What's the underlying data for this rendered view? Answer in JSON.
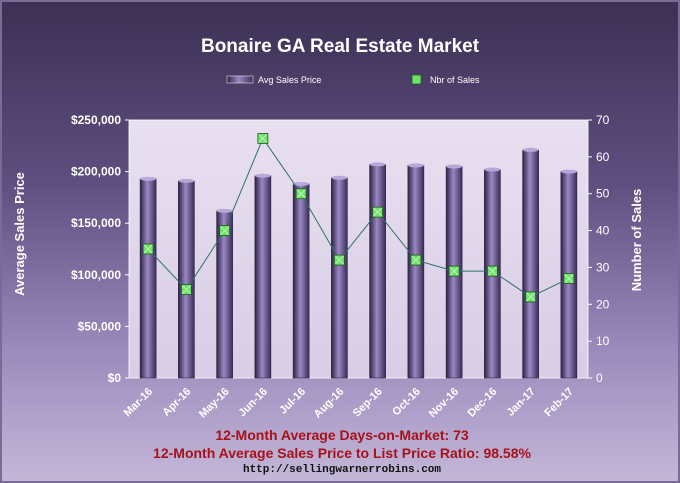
{
  "colors": {
    "bar": "#4f3d74",
    "bar_highlight": "#9b88c4",
    "plot_bg": "#e6dcef",
    "line": "#2f6f6a",
    "marker": "#6fe06a",
    "stat_text": "#a8101a"
  },
  "chart_data": {
    "type": "bar",
    "title": "Bonaire GA Real Estate Market",
    "categories": [
      "Mar-16",
      "Apr-16",
      "May-16",
      "Jun-16",
      "Jul-16",
      "Aug-16",
      "Sep-16",
      "Oct-16",
      "Nov-16",
      "Dec-16",
      "Jan-17",
      "Feb-17"
    ],
    "series": [
      {
        "name": "Avg Sales Price",
        "type": "bar",
        "axis": "left",
        "values": [
          193000,
          191000,
          162000,
          196000,
          188000,
          194000,
          207000,
          206000,
          205000,
          202000,
          221000,
          200000
        ]
      },
      {
        "name": "Nbr of Sales",
        "type": "line",
        "axis": "right",
        "values": [
          35,
          24,
          40,
          65,
          50,
          32,
          45,
          32,
          29,
          29,
          22,
          27
        ]
      }
    ],
    "ylabel": "Average Sales Price",
    "y2label": "Number of Sales",
    "ylim": [
      0,
      250000
    ],
    "y2lim": [
      0,
      70
    ],
    "yticks": [
      "$0",
      "$50,000",
      "$100,000",
      "$150,000",
      "$200,000",
      "$250,000"
    ],
    "y2ticks": [
      "0",
      "10",
      "20",
      "30",
      "40",
      "50",
      "60",
      "70"
    ],
    "grid": false,
    "legend": "top-center"
  },
  "footer": {
    "days_on_market": "12-Month Average Days-on-Market: 73",
    "price_ratio": "12-Month Average Sales Price to List Price Ratio: 98.58%",
    "url": "http://sellingwarnerrobins.com"
  }
}
